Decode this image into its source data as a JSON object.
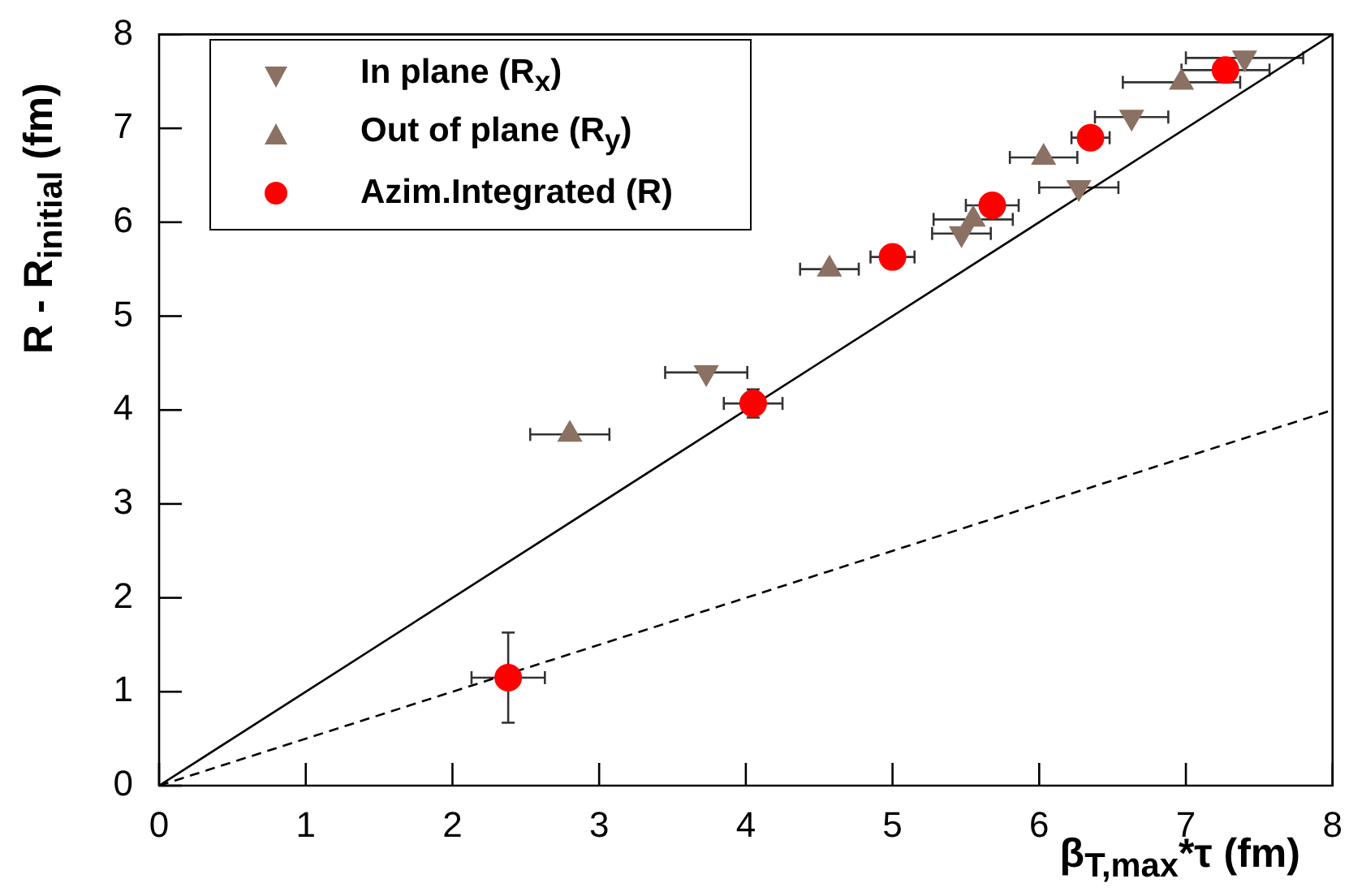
{
  "chart_data": {
    "type": "scatter",
    "xlabel": "β$_{T,max}$*τ (fm)",
    "ylabel": "R - R$_{initial}$ (fm)",
    "xlim": [
      0,
      8
    ],
    "ylim": [
      0,
      8
    ],
    "xticks": [
      0,
      1,
      2,
      3,
      4,
      5,
      6,
      7,
      8
    ],
    "yticks": [
      0,
      1,
      2,
      3,
      4,
      5,
      6,
      7,
      8
    ],
    "grid": false,
    "legend": "top left",
    "series": [
      {
        "name": "In plane (R$_{x}$)",
        "color": "#8b7163",
        "marker": "triangle-down",
        "x": [
          3.73,
          5.47,
          6.27,
          6.63,
          7.4
        ],
        "values": [
          4.4,
          5.88,
          6.37,
          7.12,
          7.75
        ],
        "xerrors": [
          0.28,
          0.2,
          0.27,
          0.25,
          0.4
        ]
      },
      {
        "name": "Out of plane (R$_{y}$)",
        "color": "#8b7163",
        "marker": "triangle",
        "x": [
          2.8,
          4.57,
          5.55,
          6.03,
          6.97
        ],
        "values": [
          3.74,
          5.5,
          6.03,
          6.69,
          7.49
        ],
        "xerrors": [
          0.27,
          0.2,
          0.27,
          0.23,
          0.4
        ]
      },
      {
        "name": "Azim.Integrated (R)",
        "color": "#ff0000",
        "marker": "circle",
        "x": [
          2.38,
          4.05,
          5.0,
          5.68,
          6.35,
          7.27
        ],
        "values": [
          1.15,
          4.07,
          5.63,
          6.18,
          6.9,
          7.62
        ],
        "xerrors": [
          0.25,
          0.2,
          0.15,
          0.18,
          0.13,
          0.3
        ],
        "errors": [
          0.48,
          0.15,
          null,
          null,
          null,
          null
        ]
      },
      {
        "type": "line",
        "color": "#000000",
        "line_style": "solid",
        "marker": "none",
        "x": [
          0,
          8
        ],
        "values": [
          0,
          8
        ]
      },
      {
        "type": "line",
        "color": "#000000",
        "line_style": "dashed",
        "marker": "none",
        "x": [
          0,
          8
        ],
        "values": [
          0,
          4
        ]
      }
    ]
  }
}
